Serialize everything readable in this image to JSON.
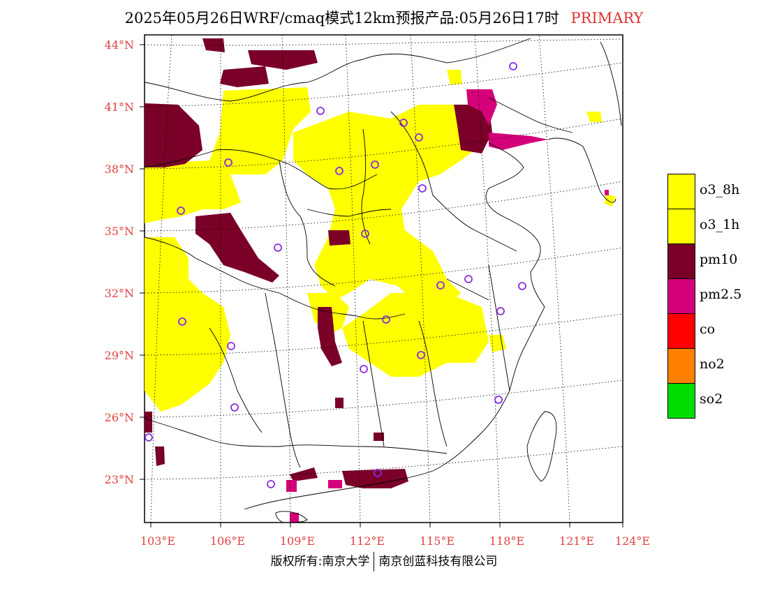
{
  "header": {
    "title": "2025年05月26日WRF/cmaq模式12km预报产品:05月26日17时",
    "tag": "PRIMARY"
  },
  "axes": {
    "lat_labels": [
      "44°N",
      "41°N",
      "38°N",
      "35°N",
      "32°N",
      "29°N",
      "26°N",
      "23°N"
    ],
    "lon_labels": [
      "103°E",
      "106°E",
      "109°E",
      "112°E",
      "115°E",
      "118°E",
      "121°E",
      "124°E"
    ]
  },
  "legend": {
    "items": [
      {
        "label": "o3_8h",
        "color": "#ffff00"
      },
      {
        "label": "o3_1h",
        "color": "#ffff00"
      },
      {
        "label": "pm10",
        "color": "#7a0028"
      },
      {
        "label": "pm2.5",
        "color": "#d4007a"
      },
      {
        "label": "co",
        "color": "#ff0000"
      },
      {
        "label": "no2",
        "color": "#ff8000"
      },
      {
        "label": "so2",
        "color": "#00dd00"
      }
    ]
  },
  "footer": {
    "left": "版权所有:南京大学",
    "right": "南京创蓝科技有限公司"
  },
  "colors": {
    "axis_label": "#e04040",
    "station_marker": "#8a2be2",
    "o3": "#ffff00",
    "pm10": "#7a0028",
    "pm25": "#d4007a"
  }
}
